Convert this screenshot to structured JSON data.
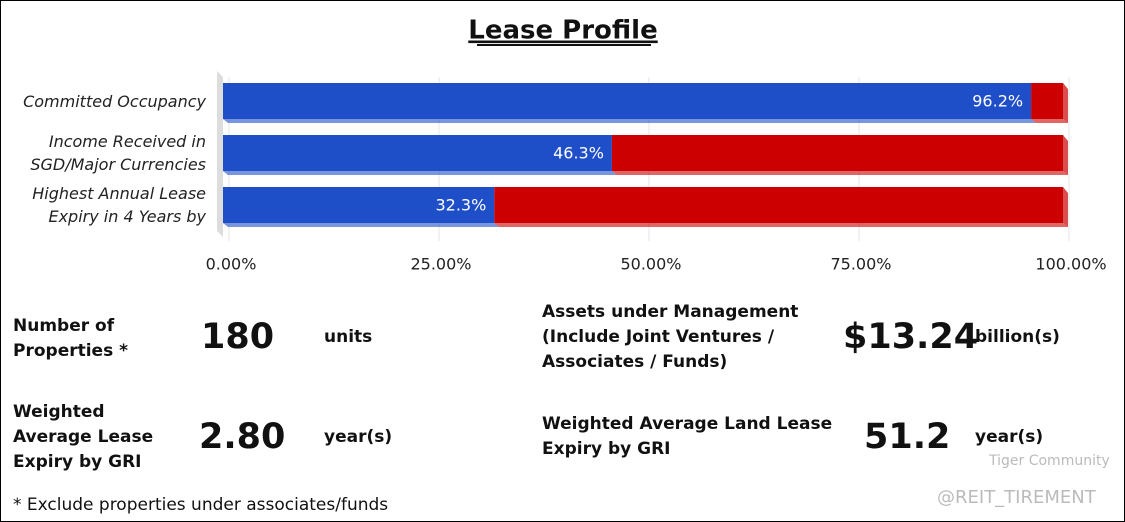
{
  "chart_data": {
    "type": "bar",
    "orientation": "horizontal",
    "stacked": true,
    "title": "Lease Profile",
    "categories": [
      "Committed Occupancy",
      "Income Received in\nSGD/Major Currencies",
      "Highest Annual Lease\nExpiry in 4 Years by"
    ],
    "series": [
      {
        "color": "#1f4fc8",
        "values": [
          96.2,
          46.3,
          32.3
        ],
        "value_labels": [
          "96.2%",
          "46.3%",
          "32.3%"
        ]
      },
      {
        "color": "#cc0000",
        "values": [
          3.8,
          53.7,
          67.7
        ]
      }
    ],
    "xlim": [
      0,
      100
    ],
    "xticks": [
      {
        "value": 0,
        "label": "0.00%"
      },
      {
        "value": 25,
        "label": "25.00%"
      },
      {
        "value": 50,
        "label": "50.00%"
      },
      {
        "value": 75,
        "label": "75.00%"
      },
      {
        "value": 100,
        "label": "100.00%"
      }
    ],
    "grid": true
  },
  "stats": [
    {
      "label": "Number of\nProperties *",
      "value": "180",
      "unit": "units"
    },
    {
      "label": "Assets under Management\n(Include Joint Ventures /\nAssociates / Funds)",
      "value": "$13.24",
      "unit": "billion(s)"
    },
    {
      "label": "Weighted\nAverage Lease\nExpiry by GRI",
      "value": "2.80",
      "unit": "year(s)"
    },
    {
      "label": "Weighted Average Land Lease\nExpiry by GRI",
      "value": "51.2",
      "unit": "year(s)"
    }
  ],
  "footnote": "* Exclude properties under associates/funds",
  "watermark": {
    "brand": "Tiger Community",
    "handle": "@REIT_TIREMENT"
  }
}
